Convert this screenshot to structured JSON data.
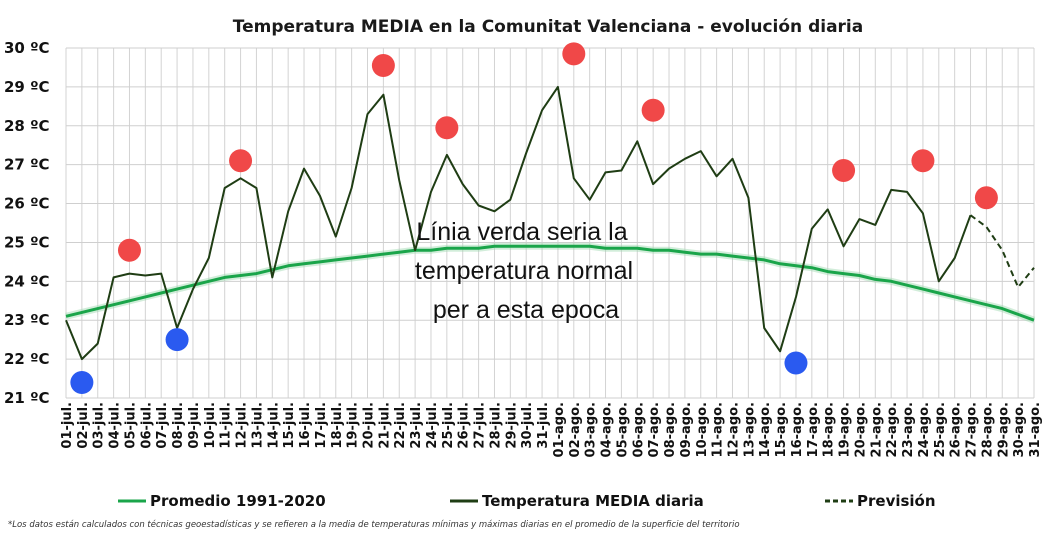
{
  "chart_data": {
    "type": "line",
    "title": "Temperatura MEDIA en la Comunitat Valenciana - evolución diaria",
    "y_tick_labels": [
      "21 ºC",
      "22 ºC",
      "23 ºC",
      "24 ºC",
      "25 ºC",
      "26 ºC",
      "27 ºC",
      "28 ºC",
      "29 ºC",
      "30 ºC"
    ],
    "ylim": [
      21,
      30
    ],
    "grid": true,
    "categories": [
      "01-jul.",
      "02-jul.",
      "03-jul.",
      "04-jul.",
      "05-jul.",
      "06-jul.",
      "07-jul.",
      "08-jul.",
      "09-jul.",
      "10-jul.",
      "11-jul.",
      "12-jul.",
      "13-jul.",
      "14-jul.",
      "15-jul.",
      "16-jul.",
      "17-jul.",
      "18-jul.",
      "19-jul.",
      "20-jul.",
      "21-jul.",
      "22-jul.",
      "23-jul.",
      "24-jul.",
      "25-jul.",
      "26-jul.",
      "27-jul.",
      "28-jul.",
      "29-jul.",
      "30-jul.",
      "31-jul.",
      "01-ago.",
      "02-ago.",
      "03-ago.",
      "04-ago.",
      "05-ago.",
      "06-ago.",
      "07-ago.",
      "08-ago.",
      "09-ago.",
      "10-ago.",
      "11-ago.",
      "12-ago.",
      "13-ago.",
      "14-ago.",
      "15-ago.",
      "16-ago.",
      "17-ago.",
      "18-ago.",
      "19-ago.",
      "20-ago.",
      "21-ago.",
      "22-ago.",
      "23-ago.",
      "24-ago.",
      "25-ago.",
      "26-ago.",
      "27-ago.",
      "28-ago.",
      "29-ago.",
      "30-ago.",
      "31-ago."
    ],
    "series": [
      {
        "name": "Promedio 1991-2020",
        "color": "#1aa54a",
        "style": "solid",
        "values": [
          23.1,
          23.2,
          23.3,
          23.4,
          23.5,
          23.6,
          23.7,
          23.8,
          23.9,
          24.0,
          24.1,
          24.15,
          24.2,
          24.3,
          24.4,
          24.45,
          24.5,
          24.55,
          24.6,
          24.65,
          24.7,
          24.75,
          24.8,
          24.8,
          24.85,
          24.85,
          24.85,
          24.9,
          24.9,
          24.9,
          24.9,
          24.9,
          24.9,
          24.9,
          24.85,
          24.85,
          24.85,
          24.8,
          24.8,
          24.75,
          24.7,
          24.7,
          24.65,
          24.6,
          24.55,
          24.45,
          24.4,
          24.35,
          24.25,
          24.2,
          24.15,
          24.05,
          24.0,
          23.9,
          23.8,
          23.7,
          23.6,
          23.5,
          23.4,
          23.3,
          23.15,
          23.0
        ]
      },
      {
        "name": "Temperatura MEDIA diaria",
        "color": "#1f3d14",
        "style": "solid",
        "values": [
          23.0,
          22.0,
          22.4,
          24.1,
          24.2,
          24.15,
          24.2,
          22.8,
          23.8,
          24.6,
          26.4,
          26.65,
          26.4,
          24.1,
          25.8,
          26.9,
          26.2,
          25.15,
          26.4,
          28.3,
          28.8,
          26.6,
          24.8,
          26.3,
          27.25,
          26.5,
          25.95,
          25.8,
          26.1,
          27.3,
          28.4,
          29.0,
          26.65,
          26.1,
          26.8,
          26.85,
          27.6,
          26.5,
          26.9,
          27.15,
          27.35,
          26.7,
          27.15,
          26.15,
          22.8,
          22.2,
          23.6,
          25.35,
          25.85,
          24.9,
          25.6,
          25.45,
          26.35,
          26.3,
          25.75,
          24.0,
          24.6,
          25.7,
          null,
          null,
          null,
          null
        ]
      },
      {
        "name": "Previsión",
        "color": "#1f3d14",
        "style": "dashed",
        "values": [
          null,
          null,
          null,
          null,
          null,
          null,
          null,
          null,
          null,
          null,
          null,
          null,
          null,
          null,
          null,
          null,
          null,
          null,
          null,
          null,
          null,
          null,
          null,
          null,
          null,
          null,
          null,
          null,
          null,
          null,
          null,
          null,
          null,
          null,
          null,
          null,
          null,
          null,
          null,
          null,
          null,
          null,
          null,
          null,
          null,
          null,
          null,
          null,
          null,
          null,
          null,
          null,
          null,
          null,
          null,
          null,
          null,
          25.7,
          25.4,
          24.8,
          23.85,
          24.35
        ]
      }
    ],
    "markers": [
      {
        "category": "02-jul.",
        "value": 21.4,
        "color": "#2a5af0"
      },
      {
        "category": "05-jul.",
        "value": 24.8,
        "color": "#f04848"
      },
      {
        "category": "08-jul.",
        "value": 22.5,
        "color": "#2a5af0"
      },
      {
        "category": "12-jul.",
        "value": 27.1,
        "color": "#f04848"
      },
      {
        "category": "21-jul.",
        "value": 29.55,
        "color": "#f04848"
      },
      {
        "category": "25-jul.",
        "value": 27.95,
        "color": "#f04848"
      },
      {
        "category": "02-ago.",
        "value": 29.85,
        "color": "#f04848"
      },
      {
        "category": "07-ago.",
        "value": 28.4,
        "color": "#f04848"
      },
      {
        "category": "16-ago.",
        "value": 21.9,
        "color": "#2a5af0"
      },
      {
        "category": "19-ago.",
        "value": 26.85,
        "color": "#f04848"
      },
      {
        "category": "24-ago.",
        "value": 27.1,
        "color": "#f04848"
      },
      {
        "category": "28-ago.",
        "value": 26.15,
        "color": "#f04848"
      }
    ],
    "annotation": [
      "Línia verda seria la",
      "temperatura normal",
      "per a esta epoca"
    ],
    "legend": {
      "placement": "bottom",
      "items": [
        {
          "label": "Promedio 1991-2020",
          "color": "#1aa54a",
          "style": "solid"
        },
        {
          "label": "Temperatura MEDIA diaria",
          "color": "#1f3d14",
          "style": "solid"
        },
        {
          "label": "Previsión",
          "color": "#1f3d14",
          "style": "dashed"
        }
      ]
    },
    "footnote": "*Los datos están calculados con técnicas geoestadísticas y se refieren a la media de temperaturas mínimas y máximas diarias en el promedio de la superficie del territorio"
  }
}
